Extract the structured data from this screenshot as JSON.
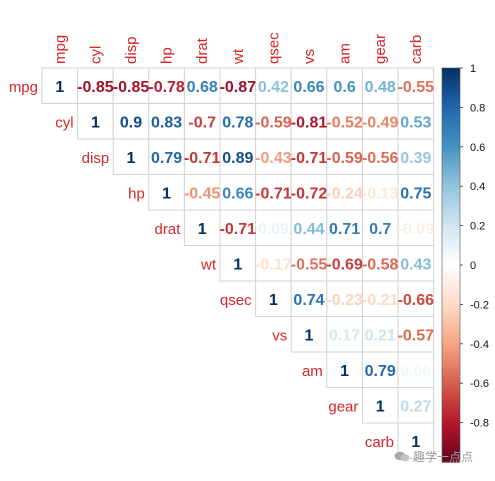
{
  "chart_data": {
    "type": "heatmap",
    "variables": [
      "mpg",
      "cyl",
      "disp",
      "hp",
      "drat",
      "wt",
      "qsec",
      "vs",
      "am",
      "gear",
      "carb"
    ],
    "matrix": [
      [
        1,
        -0.85,
        -0.85,
        -0.78,
        0.68,
        -0.87,
        0.42,
        0.66,
        0.6,
        0.48,
        -0.55
      ],
      [
        null,
        1,
        0.9,
        0.83,
        -0.7,
        0.78,
        -0.59,
        -0.81,
        -0.52,
        -0.49,
        0.53
      ],
      [
        null,
        null,
        1,
        0.79,
        -0.71,
        0.89,
        -0.43,
        -0.71,
        -0.59,
        -0.56,
        0.39
      ],
      [
        null,
        null,
        null,
        1,
        -0.45,
        0.66,
        -0.71,
        -0.72,
        -0.24,
        -0.13,
        0.75
      ],
      [
        null,
        null,
        null,
        null,
        1,
        -0.71,
        0.09,
        0.44,
        0.71,
        0.7,
        -0.09
      ],
      [
        null,
        null,
        null,
        null,
        null,
        1,
        -0.17,
        -0.55,
        -0.69,
        -0.58,
        0.43
      ],
      [
        null,
        null,
        null,
        null,
        null,
        null,
        1,
        0.74,
        -0.23,
        -0.21,
        -0.66
      ],
      [
        null,
        null,
        null,
        null,
        null,
        null,
        null,
        1,
        0.17,
        0.21,
        -0.57
      ],
      [
        null,
        null,
        null,
        null,
        null,
        null,
        null,
        null,
        1,
        0.79,
        0.06
      ],
      [
        null,
        null,
        null,
        null,
        null,
        null,
        null,
        null,
        null,
        1,
        0.27
      ],
      [
        null,
        null,
        null,
        null,
        null,
        null,
        null,
        null,
        null,
        null,
        1
      ]
    ],
    "upper_triangle_only": true,
    "color_scale": {
      "range": [
        -1,
        1
      ],
      "colors": [
        "#67001F",
        "#B2182B",
        "#D6604D",
        "#F4A582",
        "#FDDBC7",
        "#FFFFFF",
        "#D1E5F0",
        "#92C5DE",
        "#4393C3",
        "#2166AC",
        "#053061"
      ]
    },
    "colorbar_ticks": [
      "1",
      "0.8",
      "0.6",
      "0.4",
      "0.2",
      "0",
      "-0.2",
      "-0.4",
      "-0.6",
      "-0.8"
    ],
    "label_color": "#D62728"
  },
  "watermark": {
    "text": "趣学一点点"
  }
}
